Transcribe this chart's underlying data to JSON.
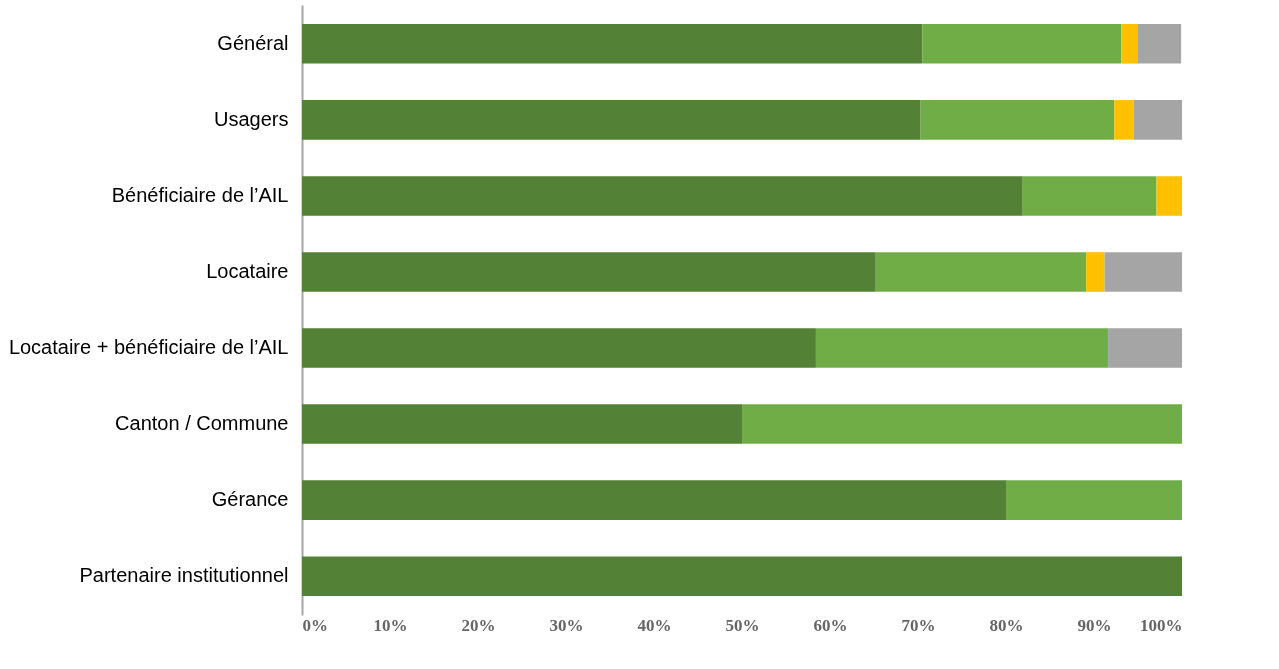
{
  "chart_data": {
    "type": "bar",
    "orientation": "horizontal",
    "stacked": true,
    "categories": [
      "Général",
      "Usagers",
      "Bénéficiaire de l’AIL",
      "Locataire",
      "Locataire + bénéficiaire de l’AIL",
      "Canton / Commune",
      "Gérance",
      "Partenaire institutionnel"
    ],
    "series": [
      {
        "color": "#538135",
        "values": [
          70.5,
          70.3,
          81.9,
          65.2,
          58.4,
          50,
          80,
          100
        ]
      },
      {
        "color": "#70ad47",
        "values": [
          22.6,
          22.0,
          15.2,
          23.9,
          33.2,
          50,
          20,
          0
        ]
      },
      {
        "color": "#ffc000",
        "values": [
          1.9,
          2.2,
          2.9,
          2.1,
          0,
          0,
          0,
          0
        ]
      },
      {
        "color": "#a5a5a5",
        "values": [
          4.9,
          5.5,
          0,
          8.8,
          8.4,
          0,
          0,
          0
        ]
      }
    ],
    "xlim": [
      0,
      100
    ],
    "xticks": [
      {
        "value": 0,
        "label": "0%"
      },
      {
        "value": 10,
        "label": "10%"
      },
      {
        "value": 20,
        "label": "20%"
      },
      {
        "value": 30,
        "label": "30%"
      },
      {
        "value": 40,
        "label": "40%"
      },
      {
        "value": 50,
        "label": "50%"
      },
      {
        "value": 60,
        "label": "60%"
      },
      {
        "value": 70,
        "label": "70%"
      },
      {
        "value": 80,
        "label": "80%"
      },
      {
        "value": 90,
        "label": "90%"
      },
      {
        "value": 100,
        "label": "100%"
      }
    ],
    "grid": false,
    "legend": false
  }
}
